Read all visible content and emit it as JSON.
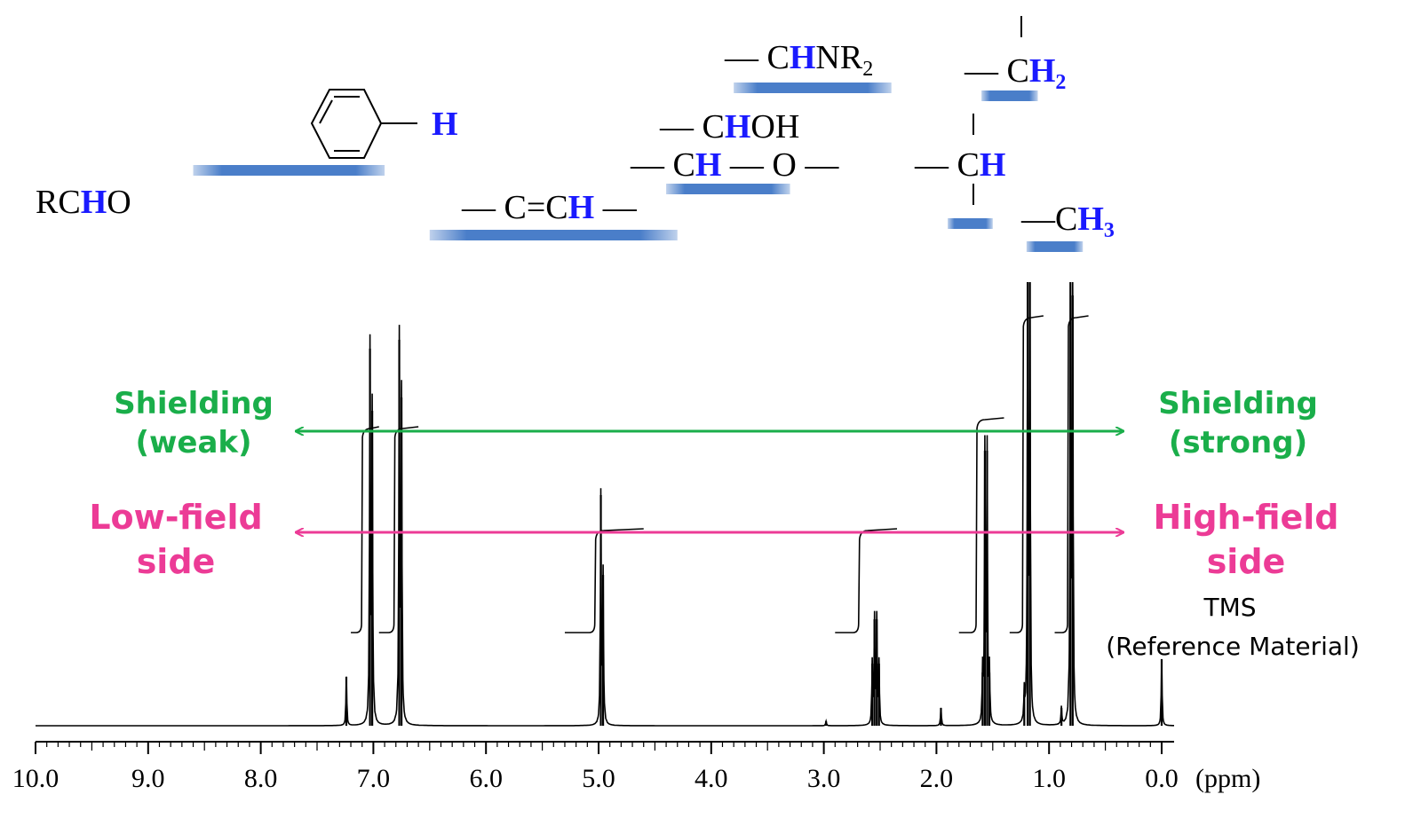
{
  "colors": {
    "spectrum": "#000000",
    "hydrogen": "#1a1aff",
    "range_bar": "#4a7ec9",
    "shielding": "#1aae4a",
    "field": "#ec3b96"
  },
  "chart_data": {
    "type": "line",
    "title": "",
    "xlabel": "(ppm)",
    "ylabel": "",
    "xlim": [
      10.0,
      0.0
    ],
    "x_reversed": true,
    "grid": false,
    "legend": "none",
    "x_ticks": [
      "10.0",
      "9.0",
      "8.0",
      "7.0",
      "6.0",
      "5.0",
      "4.0",
      "3.0",
      "2.0",
      "1.0",
      "0.0"
    ],
    "peaks": [
      {
        "ppm": 7.24,
        "height": 0.11
      },
      {
        "ppm": 7.03,
        "height": 0.85
      },
      {
        "ppm": 7.01,
        "height": 0.71
      },
      {
        "ppm": 6.77,
        "height": 0.87
      },
      {
        "ppm": 6.75,
        "height": 0.74
      },
      {
        "ppm": 4.98,
        "height": 0.52
      },
      {
        "ppm": 4.96,
        "height": 0.34
      },
      {
        "ppm": 2.98,
        "height": 0.01
      },
      {
        "ppm": 2.57,
        "height": 0.14
      },
      {
        "ppm": 2.55,
        "height": 0.24
      },
      {
        "ppm": 2.53,
        "height": 0.24
      },
      {
        "ppm": 2.51,
        "height": 0.14
      },
      {
        "ppm": 1.96,
        "height": 0.04
      },
      {
        "ppm": 1.59,
        "height": 0.12
      },
      {
        "ppm": 1.57,
        "height": 0.62
      },
      {
        "ppm": 1.55,
        "height": 0.62
      },
      {
        "ppm": 1.53,
        "height": 0.12
      },
      {
        "ppm": 1.22,
        "height": 0.07
      },
      {
        "ppm": 1.19,
        "height": 1.0
      },
      {
        "ppm": 1.17,
        "height": 1.0
      },
      {
        "ppm": 0.89,
        "height": 0.04
      },
      {
        "ppm": 0.81,
        "height": 1.0
      },
      {
        "ppm": 0.79,
        "height": 0.97
      },
      {
        "ppm": 0.0,
        "height": 0.15
      }
    ],
    "integrals": [
      {
        "from": 7.2,
        "to": 6.95,
        "base": 0.21,
        "top": 0.67
      },
      {
        "from": 6.95,
        "to": 6.6,
        "base": 0.21,
        "top": 0.67
      },
      {
        "from": 5.3,
        "to": 4.6,
        "base": 0.21,
        "top": 0.44
      },
      {
        "from": 2.9,
        "to": 2.35,
        "base": 0.21,
        "top": 0.44
      },
      {
        "from": 1.8,
        "to": 1.4,
        "base": 0.21,
        "top": 0.69
      },
      {
        "from": 1.35,
        "to": 1.05,
        "base": 0.21,
        "top": 0.92
      },
      {
        "from": 0.95,
        "to": 0.65,
        "base": 0.21,
        "top": 0.92
      }
    ],
    "chemical_shift_ranges": [
      {
        "group": "aromatic",
        "from": 8.6,
        "to": 6.9
      },
      {
        "group": "alkene",
        "from": 6.5,
        "to": 4.3
      },
      {
        "group": "ether_alcohol",
        "from": 4.4,
        "to": 3.3
      },
      {
        "group": "amine",
        "from": 3.8,
        "to": 2.4
      },
      {
        "group": "methylene",
        "from": 1.6,
        "to": 1.1
      },
      {
        "group": "methine",
        "from": 1.9,
        "to": 1.5
      },
      {
        "group": "methyl",
        "from": 1.2,
        "to": 0.7
      }
    ]
  },
  "labels": {
    "rcho": {
      "pre": "RC",
      "h": "H",
      "post": "O"
    },
    "aromatic": {
      "h": "H"
    },
    "alkene": {
      "pre": "— C=C",
      "h": "H",
      "post": " —"
    },
    "alcohol": {
      "pre": "— C",
      "h": "H",
      "post": "OH"
    },
    "ether": {
      "pre": "— C",
      "h": "H",
      "post": " — O —"
    },
    "amine": {
      "pre": "— C",
      "h": "H",
      "post": "NR",
      "sub": "2"
    },
    "methylene": {
      "pre": "— C",
      "h": "H",
      "sub": "2"
    },
    "methine": {
      "pre": "— C",
      "h": "H"
    },
    "methyl": {
      "pre": "—C",
      "h": "H",
      "sub": "3"
    }
  },
  "annotations": {
    "shielding_left": [
      "Shielding",
      "(weak)"
    ],
    "shielding_right": [
      "Shielding",
      "(strong)"
    ],
    "field_left": [
      "Low-field",
      "side"
    ],
    "field_right": [
      "High-field",
      "side"
    ],
    "tms": [
      "TMS",
      "(Reference Material)"
    ]
  }
}
